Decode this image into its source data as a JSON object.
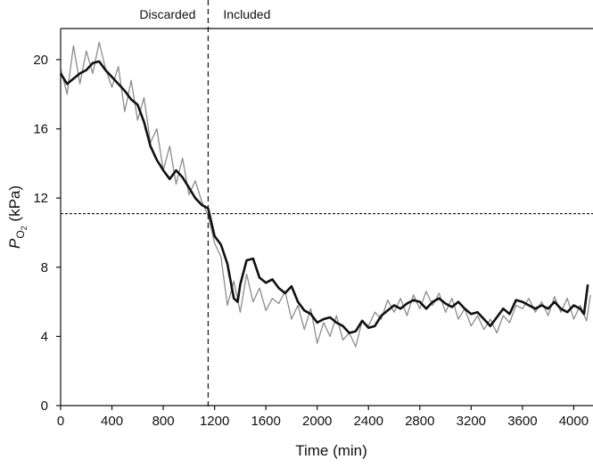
{
  "chart_data": {
    "type": "line",
    "title": "",
    "xlabel": "Time (min)",
    "ylabel": {
      "main": "P",
      "sub": "O",
      "subsub": "2",
      "unit": " (kPa)"
    },
    "xlim": [
      0,
      4150
    ],
    "ylim": [
      0,
      21.8
    ],
    "xticks": [
      0,
      400,
      800,
      1200,
      1600,
      2000,
      2400,
      2800,
      3200,
      3600,
      4000
    ],
    "yticks": [
      0,
      4,
      8,
      12,
      16,
      20
    ],
    "grid": false,
    "reference_lines": {
      "horizontal_y": 11.1,
      "vertical_x": 1150
    },
    "region_labels": {
      "left": "Discarded",
      "right": "Included"
    },
    "colors": {
      "raw": "#8c8c8c",
      "smoothed": "#111111",
      "reference": "#222222"
    },
    "series": [
      {
        "style": "raw",
        "x": [
          0,
          50,
          100,
          150,
          200,
          250,
          300,
          350,
          400,
          450,
          500,
          550,
          600,
          650,
          700,
          750,
          800,
          850,
          900,
          950,
          1000,
          1050,
          1100,
          1150,
          1200,
          1250,
          1300,
          1350,
          1400,
          1450,
          1500,
          1550,
          1600,
          1650,
          1700,
          1750,
          1800,
          1850,
          1900,
          1950,
          2000,
          2050,
          2100,
          2150,
          2200,
          2250,
          2300,
          2350,
          2400,
          2450,
          2500,
          2550,
          2600,
          2650,
          2700,
          2750,
          2800,
          2850,
          2900,
          2950,
          3000,
          3050,
          3100,
          3150,
          3200,
          3250,
          3300,
          3350,
          3400,
          3450,
          3500,
          3550,
          3600,
          3650,
          3700,
          3750,
          3800,
          3850,
          3900,
          3950,
          4000,
          4050,
          4100,
          4130
        ],
        "y": [
          19.5,
          18.0,
          20.8,
          18.6,
          20.5,
          19.2,
          21.0,
          19.5,
          18.4,
          19.6,
          17.0,
          18.8,
          16.5,
          17.8,
          15.2,
          16.0,
          13.6,
          15.0,
          12.8,
          14.3,
          12.2,
          13.0,
          11.8,
          11.0,
          9.4,
          8.6,
          5.8,
          7.2,
          5.4,
          7.6,
          6.0,
          6.8,
          5.5,
          6.2,
          5.9,
          6.6,
          5.0,
          5.8,
          4.4,
          5.6,
          3.6,
          4.8,
          4.0,
          5.2,
          3.8,
          4.2,
          3.4,
          4.9,
          4.6,
          5.4,
          5.0,
          6.1,
          5.4,
          6.2,
          5.2,
          6.4,
          5.6,
          6.6,
          5.8,
          6.5,
          5.4,
          6.2,
          5.0,
          5.6,
          4.6,
          5.2,
          4.4,
          5.0,
          4.2,
          5.2,
          4.8,
          5.8,
          5.6,
          6.2,
          5.4,
          6.0,
          5.2,
          6.3,
          5.4,
          6.2,
          5.0,
          5.8,
          4.9,
          6.4
        ]
      },
      {
        "style": "smoothed",
        "x": [
          0,
          50,
          100,
          150,
          200,
          250,
          300,
          350,
          400,
          450,
          500,
          550,
          600,
          650,
          700,
          750,
          800,
          850,
          900,
          950,
          1000,
          1050,
          1100,
          1150,
          1200,
          1250,
          1300,
          1350,
          1380,
          1400,
          1450,
          1500,
          1550,
          1600,
          1650,
          1700,
          1750,
          1800,
          1850,
          1900,
          1950,
          2000,
          2050,
          2100,
          2150,
          2200,
          2250,
          2300,
          2350,
          2400,
          2450,
          2500,
          2550,
          2600,
          2650,
          2700,
          2750,
          2800,
          2850,
          2900,
          2950,
          3000,
          3050,
          3100,
          3150,
          3200,
          3250,
          3300,
          3350,
          3400,
          3450,
          3500,
          3550,
          3600,
          3650,
          3700,
          3750,
          3800,
          3850,
          3900,
          3950,
          4000,
          4050,
          4080,
          4110
        ],
        "y": [
          19.2,
          18.6,
          18.9,
          19.2,
          19.4,
          19.8,
          19.9,
          19.4,
          19.0,
          18.6,
          18.2,
          17.7,
          17.4,
          16.4,
          15.0,
          14.2,
          13.6,
          13.1,
          13.6,
          13.2,
          12.6,
          12.0,
          11.6,
          11.4,
          9.8,
          9.3,
          8.2,
          6.2,
          6.0,
          7.0,
          8.4,
          8.5,
          7.4,
          7.1,
          7.3,
          6.8,
          6.5,
          6.9,
          6.0,
          5.5,
          5.3,
          4.8,
          5.0,
          5.1,
          4.8,
          4.6,
          4.2,
          4.3,
          4.9,
          4.5,
          4.6,
          5.2,
          5.5,
          5.8,
          5.6,
          5.9,
          6.1,
          6.0,
          5.6,
          6.0,
          6.2,
          5.9,
          5.7,
          6.0,
          5.6,
          5.3,
          5.4,
          5.0,
          4.6,
          5.1,
          5.6,
          5.3,
          6.1,
          6.0,
          5.8,
          5.6,
          5.8,
          5.6,
          6.0,
          5.6,
          5.4,
          5.8,
          5.6,
          5.3,
          7.0
        ]
      }
    ]
  }
}
